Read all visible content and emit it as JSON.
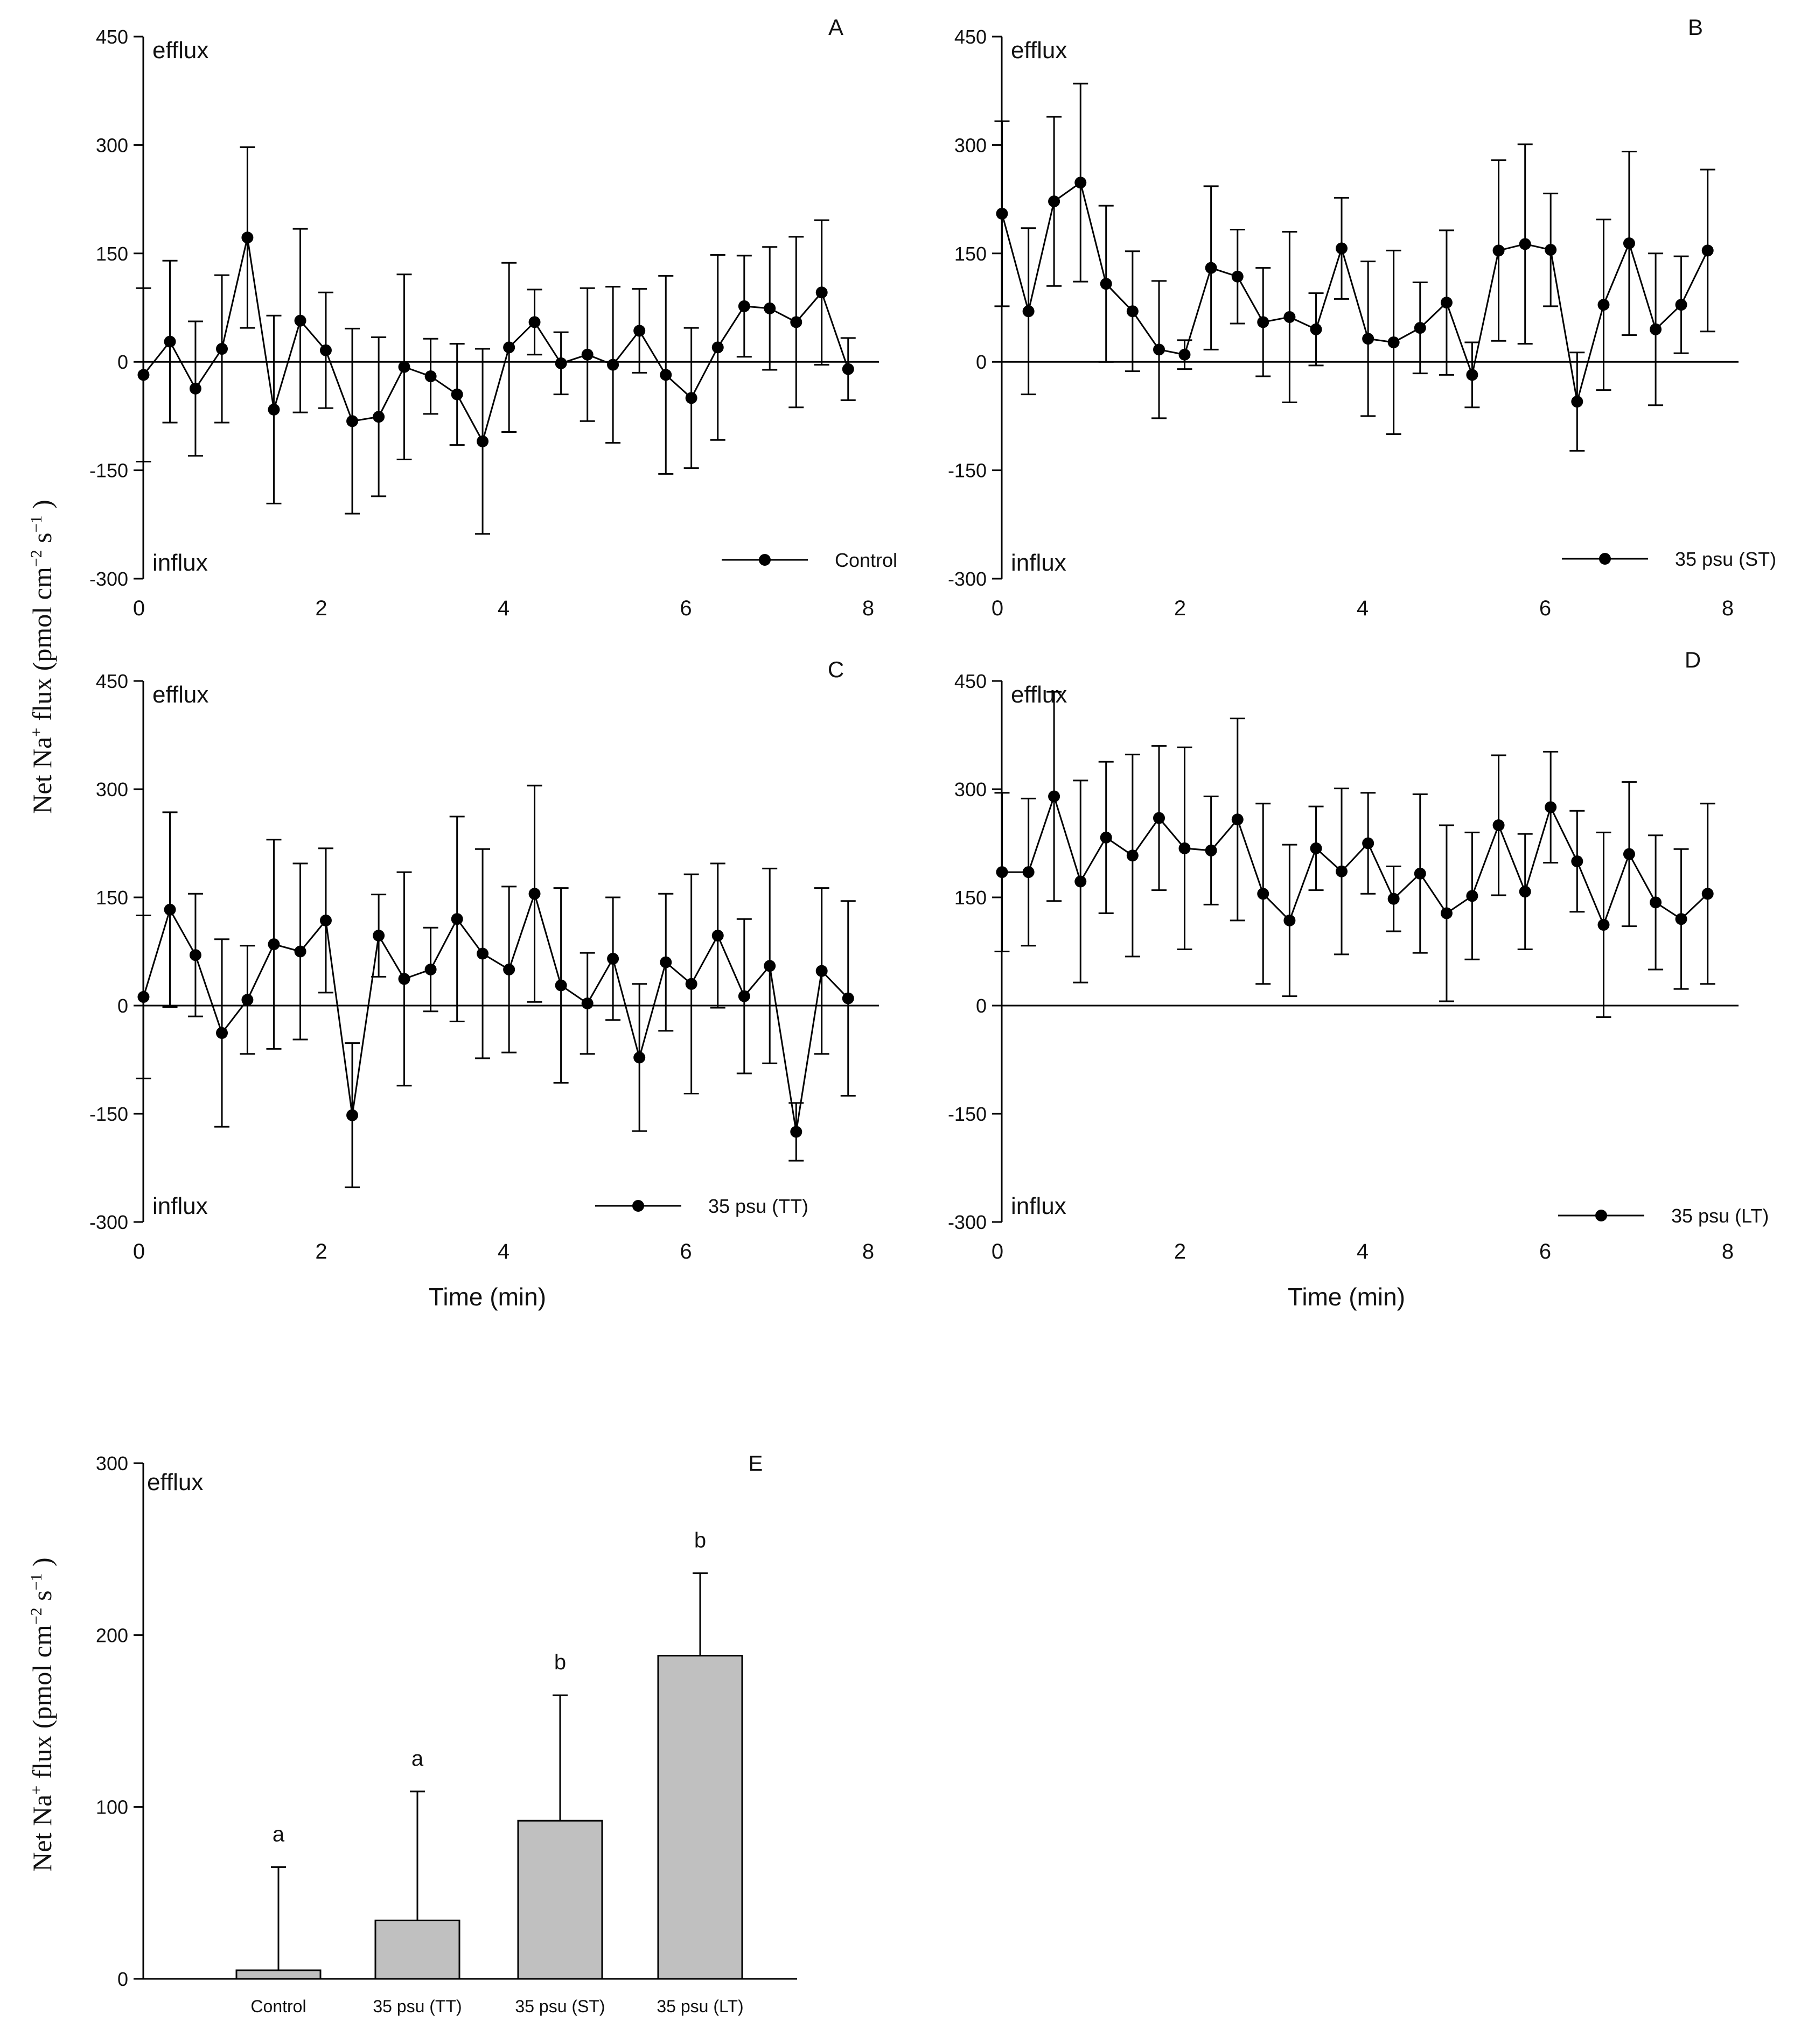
{
  "shared": {
    "ylabel": "Net Na",
    "ylabel_sup": "+",
    "ylabel_units": " flux (pmol cm",
    "ylabel_exp1": "−2",
    "ylabel_s": " s",
    "ylabel_exp2": "−1",
    "ylabel_close": " )",
    "efflux_label": "efflux",
    "influx_label": "influx",
    "xlabel": "Time (min)"
  },
  "chart_data": [
    {
      "type": "line",
      "panel": "A",
      "legend": "Control",
      "xlim": [
        0,
        8
      ],
      "ylim": [
        -300,
        450
      ],
      "xticks": [
        "0",
        "2",
        "4",
        "6",
        "8"
      ],
      "yticks": [
        "450",
        "300",
        "150",
        "0",
        "-150",
        "-300"
      ],
      "x": [
        0.05,
        0.34,
        0.62,
        0.91,
        1.19,
        1.48,
        1.77,
        2.05,
        2.34,
        2.63,
        2.91,
        3.2,
        3.49,
        3.77,
        4.06,
        4.34,
        4.63,
        4.92,
        5.2,
        5.49,
        5.78,
        6.06,
        6.35,
        6.64,
        6.92,
        7.21,
        7.49,
        7.78
      ],
      "y": [
        -18,
        28,
        -37,
        18,
        172,
        -66,
        57,
        16,
        -82,
        -76,
        -7,
        -20,
        -45,
        -110,
        20,
        55,
        -2,
        10,
        -4,
        43,
        -18,
        -50,
        20,
        77,
        74,
        55,
        96,
        -10
      ],
      "err": [
        120,
        112,
        93,
        102,
        125,
        130,
        127,
        80,
        128,
        110,
        128,
        52,
        70,
        128,
        117,
        45,
        43,
        92,
        108,
        58,
        137,
        97,
        128,
        70,
        85,
        118,
        100,
        43
      ],
      "xlabel": ""
    },
    {
      "type": "line",
      "panel": "B",
      "legend": "35 psu (ST)",
      "xlim": [
        0,
        8
      ],
      "ylim": [
        -300,
        450
      ],
      "xticks": [
        "0",
        "2",
        "4",
        "6",
        "8"
      ],
      "yticks": [
        "450",
        "300",
        "150",
        "0",
        "-150",
        "-300"
      ],
      "x": [
        0.05,
        0.34,
        0.62,
        0.91,
        1.19,
        1.48,
        1.77,
        2.05,
        2.34,
        2.63,
        2.91,
        3.2,
        3.49,
        3.77,
        4.06,
        4.34,
        4.63,
        4.92,
        5.2,
        5.49,
        5.78,
        6.06,
        6.35,
        6.64,
        6.92,
        7.21,
        7.49,
        7.78
      ],
      "y": [
        205,
        70,
        222,
        248,
        108,
        70,
        17,
        10,
        130,
        118,
        55,
        62,
        45,
        157,
        32,
        27,
        47,
        82,
        -18,
        154,
        163,
        155,
        -55,
        79,
        164,
        45,
        79,
        154
      ],
      "err": [
        128,
        115,
        117,
        137,
        108,
        83,
        95,
        20,
        113,
        65,
        75,
        118,
        50,
        70,
        107,
        127,
        63,
        100,
        45,
        125,
        138,
        78,
        68,
        118,
        127,
        105,
        67,
        112
      ],
      "xlabel": ""
    },
    {
      "type": "line",
      "panel": "C",
      "legend": "35 psu (TT)",
      "xlim": [
        0,
        8
      ],
      "ylim": [
        -300,
        450
      ],
      "xticks": [
        "0",
        "2",
        "4",
        "6",
        "8"
      ],
      "yticks": [
        "450",
        "300",
        "150",
        "0",
        "-150",
        "-300"
      ],
      "x": [
        0.05,
        0.34,
        0.62,
        0.91,
        1.19,
        1.48,
        1.77,
        2.05,
        2.34,
        2.63,
        2.91,
        3.2,
        3.49,
        3.77,
        4.06,
        4.34,
        4.63,
        4.92,
        5.2,
        5.49,
        5.78,
        6.06,
        6.35,
        6.64,
        6.92,
        7.21,
        7.49,
        7.78
      ],
      "y": [
        12,
        133,
        70,
        -38,
        8,
        85,
        75,
        118,
        -152,
        97,
        37,
        50,
        120,
        72,
        50,
        155,
        28,
        3,
        65,
        -72,
        60,
        30,
        97,
        13,
        55,
        -175,
        48,
        10
      ],
      "err": [
        113,
        135,
        85,
        130,
        75,
        145,
        122,
        100,
        100,
        57,
        148,
        58,
        142,
        145,
        115,
        150,
        135,
        70,
        85,
        102,
        95,
        152,
        100,
        107,
        135,
        40,
        115,
        135
      ],
      "xlabel": "Time (min)"
    },
    {
      "type": "line",
      "panel": "D",
      "legend": "35 psu (LT)",
      "xlim": [
        0,
        8
      ],
      "ylim": [
        -300,
        450
      ],
      "xticks": [
        "0",
        "2",
        "4",
        "6",
        "8"
      ],
      "yticks": [
        "450",
        "300",
        "150",
        "0",
        "-150",
        "-300"
      ],
      "x": [
        0.05,
        0.34,
        0.62,
        0.91,
        1.19,
        1.48,
        1.77,
        2.05,
        2.34,
        2.63,
        2.91,
        3.2,
        3.49,
        3.77,
        4.06,
        4.34,
        4.63,
        4.92,
        5.2,
        5.49,
        5.78,
        6.06,
        6.35,
        6.64,
        6.92,
        7.21,
        7.49,
        7.78
      ],
      "y": [
        185,
        185,
        290,
        172,
        233,
        208,
        260,
        218,
        215,
        258,
        155,
        118,
        218,
        186,
        225,
        148,
        183,
        128,
        152,
        250,
        158,
        275,
        200,
        112,
        210,
        143,
        120,
        155
      ],
      "err": [
        110,
        102,
        145,
        140,
        105,
        140,
        100,
        140,
        75,
        140,
        125,
        105,
        58,
        115,
        70,
        45,
        110,
        122,
        88,
        97,
        80,
        77,
        70,
        128,
        100,
        93,
        97,
        125
      ],
      "xlabel": "Time (min)"
    },
    {
      "type": "bar",
      "panel": "E",
      "categories": [
        "Control",
        "35 psu (TT)",
        "35 psu (ST)",
        "35 psu (LT)"
      ],
      "values": [
        5,
        34,
        92,
        188
      ],
      "err": [
        60,
        75,
        73,
        48
      ],
      "letters": [
        "a",
        "a",
        "b",
        "b"
      ],
      "ylim": [
        0,
        300
      ],
      "yticks": [
        "300",
        "200",
        "100",
        "0"
      ],
      "xlabel": ""
    }
  ]
}
